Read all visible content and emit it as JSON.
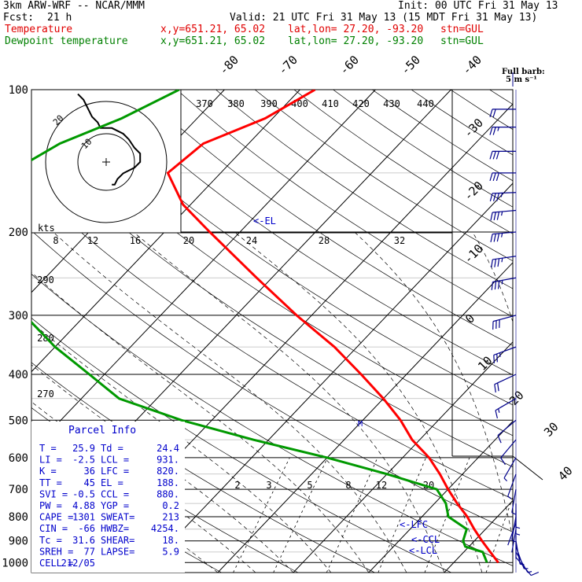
{
  "header": {
    "model": "3km ARW-WRF -- NCAR/MMM",
    "init": "Init: 00 UTC Fri 31 May 13",
    "fcst_label": "Fcst:",
    "fcst_hours": "21 h",
    "valid": "Valid: 21 UTC Fri 31 May 13 (15 MDT Fri 31 May 13)",
    "temp_label": "Temperature",
    "dew_label": "Dewpoint temperature",
    "xy": "x,y=651.21, 65.02",
    "latlon": "lat,lon= 27.20, -93.20",
    "stn": "stn=GUL"
  },
  "barb_legend": {
    "title": "Full barb:",
    "value": "5 m s⁻¹"
  },
  "colors": {
    "temperature": "#ff0000",
    "dewpoint": "#009900",
    "barbs": "#00008b",
    "info": "#0000cc"
  },
  "parcel_info": {
    "title": "Parcel Info",
    "rows": [
      [
        "T  =",
        "25.9",
        "Td =",
        "24.4"
      ],
      [
        "LI =",
        "-2.5",
        "LCL =",
        "931."
      ],
      [
        "K  =",
        "36",
        "LFC =",
        "820."
      ],
      [
        "TT =",
        "45",
        "EL =",
        "188."
      ],
      [
        "SVI =",
        "-0.5",
        "CCL =",
        "880."
      ],
      [
        "PW =",
        "4.88",
        "YGP =",
        "0.2"
      ],
      [
        "CAPE =",
        "1301",
        "SWEAT=",
        "213"
      ],
      [
        "CIN =",
        "-66",
        "HWBZ=",
        "4254."
      ],
      [
        "Tc =",
        "31.6",
        "SHEAR=",
        "18."
      ],
      [
        "SREH =",
        "77",
        "LAPSE=",
        "5.9"
      ],
      [
        "CELL =",
        "212/05",
        "",
        ""
      ]
    ]
  },
  "level_labels": {
    "el": "<-EL",
    "lfc": "<-LFC",
    "ccl": "<-CCL",
    "lcl": "<-LCL"
  },
  "hodograph": {
    "units": "kts",
    "ring_labels": [
      "10",
      "20"
    ]
  },
  "chart_data": {
    "type": "line",
    "title": "",
    "yaxis": "pressure (hPa), log scale",
    "pressure_ticks": [
      100,
      200,
      300,
      400,
      500,
      600,
      700,
      800,
      900,
      1000
    ],
    "isotherm_labels": [
      "-80",
      "-70",
      "-60",
      "-50",
      "-40",
      "-30",
      "-20",
      "-10",
      "0",
      "10",
      "20",
      "30",
      "40"
    ],
    "theta_e_labels": [
      "370",
      "380",
      "390",
      "400",
      "410",
      "420",
      "430",
      "440",
      "290",
      "280",
      "270"
    ],
    "mixing_ratio_labels": [
      "2",
      "3",
      "5",
      "8",
      "12",
      "20"
    ],
    "hodo_speed_labels": [
      "8",
      "12",
      "16",
      "20",
      "24",
      "28",
      "32"
    ],
    "series": [
      {
        "name": "Temperature",
        "color": "#ff0000",
        "p": [
          1000,
          950,
          900,
          850,
          800,
          750,
          700,
          650,
          600,
          550,
          500,
          450,
          400,
          350,
          300,
          250,
          200,
          175,
          150,
          130,
          115,
          100
        ],
        "t": [
          25.9,
          23.5,
          21,
          18.5,
          16,
          13,
          10,
          7,
          3.5,
          -1,
          -5,
          -10,
          -16,
          -23,
          -32,
          -42,
          -54,
          -61,
          -67,
          -66,
          -61,
          -58
        ]
      },
      {
        "name": "Dewpoint temperature",
        "color": "#009900",
        "p": [
          1000,
          950,
          925,
          900,
          850,
          800,
          750,
          700,
          650,
          600,
          550,
          500,
          450,
          400,
          350,
          300,
          250,
          200,
          175,
          150,
          130,
          115,
          100
        ],
        "td": [
          24.4,
          22.5,
          19.5,
          18.5,
          17.5,
          13.5,
          11.5,
          8.5,
          0,
          -10,
          -22,
          -34,
          -45,
          -52,
          -60,
          -68,
          -76,
          -82,
          -86,
          -88,
          -85,
          -80,
          -76
        ]
      }
    ],
    "wind_barbs": {
      "p": [
        975,
        950,
        925,
        900,
        875,
        850,
        825,
        800,
        775,
        750,
        700,
        650,
        600,
        550,
        500,
        450,
        400,
        350,
        300,
        250,
        225,
        200,
        180,
        165,
        150,
        135,
        120,
        110
      ],
      "dir_deg": [
        140,
        150,
        160,
        170,
        180,
        190,
        200,
        190,
        180,
        180,
        190,
        200,
        210,
        220,
        230,
        240,
        245,
        250,
        255,
        260,
        262,
        265,
        265,
        268,
        270,
        270,
        270,
        270
      ],
      "speed_ms": [
        5,
        4,
        3,
        3,
        2,
        2,
        2,
        3,
        3,
        3,
        3,
        4,
        4,
        5,
        6,
        8,
        11,
        14,
        16,
        18,
        18,
        19,
        19,
        18,
        17,
        15,
        13,
        10
      ]
    },
    "hodograph_trace": {
      "u_kts": [
        2,
        3,
        4,
        6,
        10,
        12,
        12,
        10,
        8,
        6,
        2,
        -2,
        -3,
        -5,
        -6,
        -7,
        -8,
        -10
      ],
      "v_kts": [
        -8,
        -8,
        -6,
        -4,
        -2,
        0,
        3,
        5,
        8,
        10,
        12,
        12,
        14,
        16,
        18,
        20,
        22,
        24
      ]
    }
  }
}
